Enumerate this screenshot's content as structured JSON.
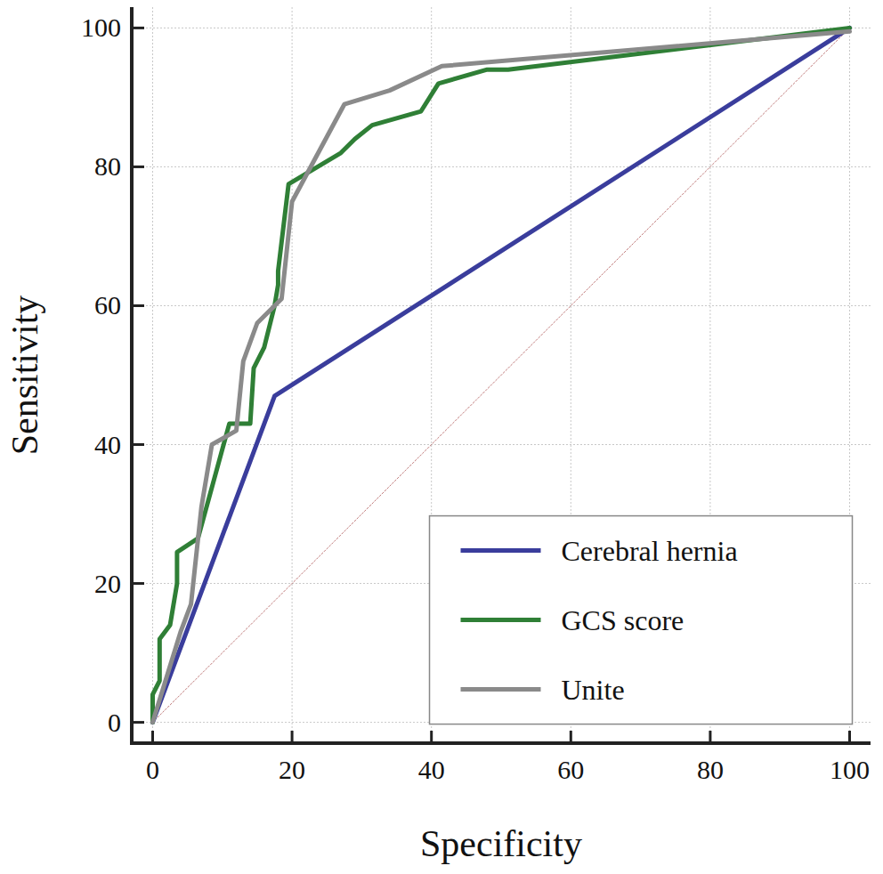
{
  "chart_data": {
    "type": "line",
    "x_label": "Specificity",
    "y_label": "Sensitivity",
    "xlim": [
      -3,
      103
    ],
    "ylim": [
      -3,
      103
    ],
    "xticks": [
      0,
      20,
      40,
      60,
      80,
      100
    ],
    "yticks": [
      0,
      20,
      40,
      60,
      80,
      100
    ],
    "grid": true,
    "legend": "bottom-right",
    "series": [
      {
        "name": "Cerebral hernia",
        "color": "#3a3d9c",
        "line_style": "solid",
        "x": [
          0,
          17.5,
          100
        ],
        "values": [
          0,
          47,
          100
        ]
      },
      {
        "name": "GCS score",
        "color": "#2f7f36",
        "line_style": "solid",
        "x": [
          0,
          0,
          1,
          1,
          2.5,
          3.5,
          3.5,
          6.5,
          11,
          12,
          14,
          14.5,
          16,
          17.5,
          18,
          18,
          19.5,
          27,
          29,
          31.5,
          38.5,
          41,
          48,
          51,
          100
        ],
        "values": [
          0,
          4,
          6,
          12,
          14,
          20,
          24.5,
          26.5,
          43,
          43,
          43,
          51,
          54,
          60,
          63,
          65,
          77.5,
          82,
          84,
          86,
          88,
          92,
          94,
          94,
          100
        ]
      },
      {
        "name": "Unite",
        "color": "#8a8a8a",
        "line_style": "solid",
        "x": [
          0,
          4,
          5.5,
          7,
          8.5,
          12,
          13,
          15,
          18.5,
          20,
          27.5,
          34,
          41.5,
          100
        ],
        "values": [
          0,
          13,
          17,
          31,
          40,
          42,
          52,
          57.5,
          61,
          75,
          89,
          91,
          94.5,
          99.5
        ]
      },
      {
        "color": "#c07a7a",
        "line_style": "dotted",
        "x": [
          0,
          100
        ],
        "values": [
          0,
          100
        ]
      }
    ]
  }
}
